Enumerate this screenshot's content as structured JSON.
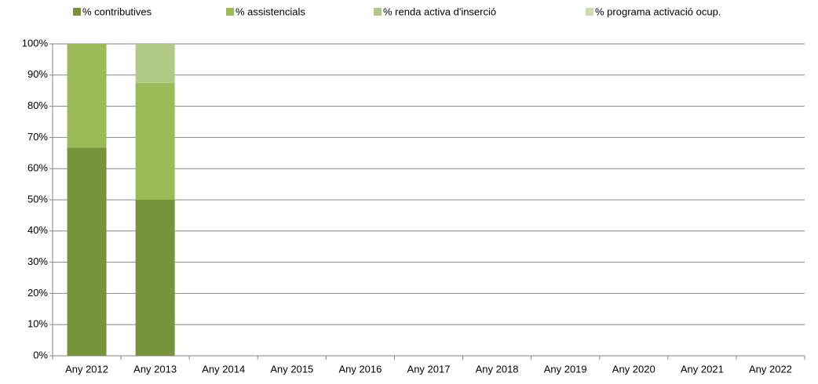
{
  "chart_data": {
    "type": "stacked_bar",
    "categories": [
      "Any 2012",
      "Any 2013",
      "Any 2014",
      "Any 2015",
      "Any 2016",
      "Any 2017",
      "Any 2018",
      "Any 2019",
      "Any 2020",
      "Any 2021",
      "Any 2022"
    ],
    "series": [
      {
        "name": "% contributives",
        "color": "#77933c",
        "values": [
          66.7,
          50,
          null,
          null,
          null,
          null,
          null,
          null,
          null,
          null,
          null
        ]
      },
      {
        "name": "% assistencials",
        "color": "#9bbb59",
        "values": [
          33.3,
          37.5,
          null,
          null,
          null,
          null,
          null,
          null,
          null,
          null,
          null
        ]
      },
      {
        "name": "% renda activa d'inserció",
        "color": "#b0c986",
        "values": [
          0,
          12.5,
          null,
          null,
          null,
          null,
          null,
          null,
          null,
          null,
          null
        ]
      },
      {
        "name": "% programa activació ocup.",
        "color": "#cddcb0",
        "values": [
          0,
          0,
          null,
          null,
          null,
          null,
          null,
          null,
          null,
          null,
          null
        ]
      }
    ],
    "ylim": [
      0,
      100
    ],
    "yticks": [
      {
        "value": 0,
        "label": "0%"
      },
      {
        "value": 10,
        "label": "10%"
      },
      {
        "value": 20,
        "label": "20%"
      },
      {
        "value": 30,
        "label": "30%"
      },
      {
        "value": 40,
        "label": "40%"
      },
      {
        "value": 50,
        "label": "50%"
      },
      {
        "value": 60,
        "label": "60%"
      },
      {
        "value": 70,
        "label": "70%"
      },
      {
        "value": 80,
        "label": "80%"
      },
      {
        "value": 90,
        "label": "90%"
      },
      {
        "value": 100,
        "label": "100%"
      }
    ],
    "grid": true,
    "legend": "top"
  }
}
